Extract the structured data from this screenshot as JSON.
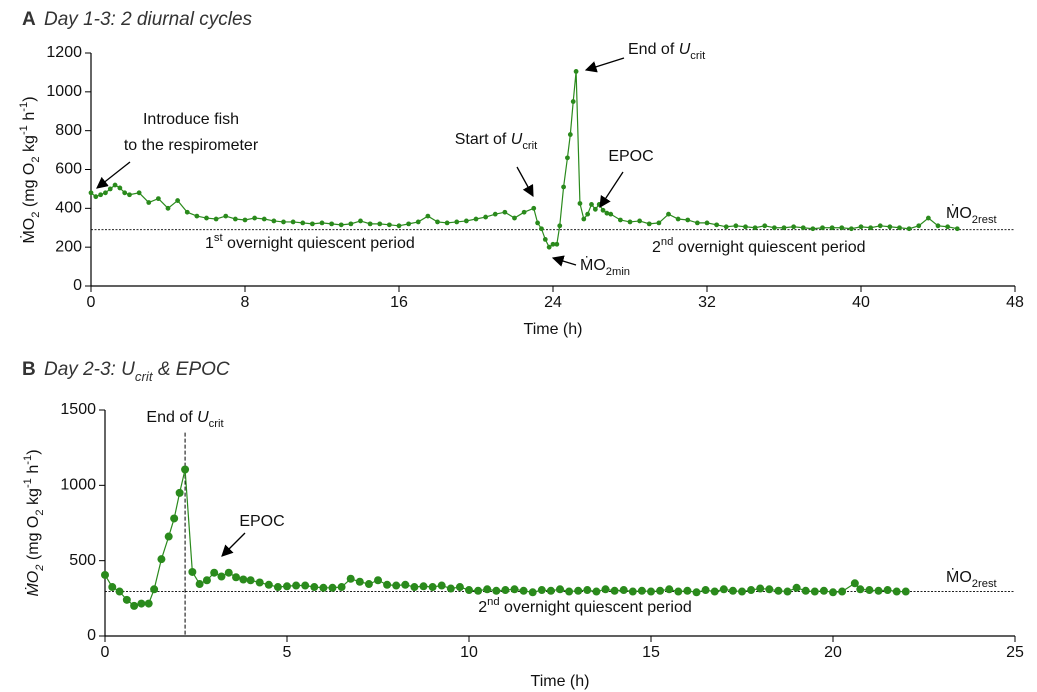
{
  "chart_data": [
    {
      "type": "line",
      "panel_label": "A",
      "title": [
        {
          "text": "Day 1-3: 2 diurnal cycles",
          "style": "italic"
        }
      ],
      "x_label": [
        {
          "text": "Time (h)"
        }
      ],
      "y_label": [
        {
          "text": "ṀO"
        },
        {
          "text": "2",
          "style": "sub"
        },
        {
          "text": " (mg O"
        },
        {
          "text": "2",
          "style": "sub"
        },
        {
          "text": " kg"
        },
        {
          "text": "-1",
          "style": "sup"
        },
        {
          "text": " h"
        },
        {
          "text": "-1",
          "style": "sup"
        },
        {
          "text": ")"
        }
      ],
      "xlim": [
        0,
        48
      ],
      "xticks": [
        0,
        8,
        16,
        24,
        32,
        40,
        48
      ],
      "ylim": [
        0,
        1200
      ],
      "yticks": [
        0,
        200,
        400,
        600,
        800,
        1000,
        1200
      ],
      "color": "#2a8a1c",
      "x": [
        0,
        0.25,
        0.5,
        0.75,
        1,
        1.25,
        1.5,
        1.75,
        2,
        2.5,
        3,
        3.5,
        4,
        4.5,
        5,
        5.5,
        6,
        6.5,
        7,
        7.5,
        8,
        8.5,
        9,
        9.5,
        10,
        10.5,
        11,
        11.5,
        12,
        12.5,
        13,
        13.5,
        14,
        14.5,
        15,
        15.5,
        16,
        16.5,
        17,
        17.5,
        18,
        18.5,
        19,
        19.5,
        20,
        20.5,
        21,
        21.5,
        22,
        22.5,
        23,
        23.2,
        23.4,
        23.6,
        23.8,
        24,
        24.2,
        24.35,
        24.55,
        24.75,
        24.9,
        25.05,
        25.2,
        25.4,
        25.6,
        25.8,
        26,
        26.2,
        26.4,
        26.6,
        26.8,
        27,
        27.5,
        28,
        28.5,
        29,
        29.5,
        30,
        30.5,
        31,
        31.5,
        32,
        32.5,
        33,
        33.5,
        34,
        34.5,
        35,
        35.5,
        36,
        36.5,
        37,
        37.5,
        38,
        38.5,
        39,
        39.5,
        40,
        40.5,
        41,
        41.5,
        42,
        42.5,
        43,
        43.5,
        44,
        44.5,
        45
      ],
      "values": [
        480,
        460,
        470,
        480,
        500,
        520,
        505,
        480,
        470,
        480,
        430,
        450,
        400,
        440,
        380,
        360,
        350,
        345,
        360,
        345,
        340,
        350,
        345,
        335,
        330,
        330,
        325,
        320,
        325,
        320,
        315,
        320,
        335,
        320,
        320,
        315,
        310,
        320,
        330,
        360,
        330,
        325,
        330,
        335,
        345,
        355,
        370,
        380,
        350,
        380,
        400,
        325,
        295,
        240,
        200,
        215,
        215,
        310,
        510,
        660,
        780,
        950,
        1105,
        425,
        345,
        370,
        420,
        395,
        420,
        390,
        375,
        370,
        340,
        330,
        335,
        320,
        325,
        370,
        345,
        340,
        325,
        325,
        315,
        305,
        310,
        305,
        300,
        310,
        300,
        300,
        305,
        300,
        295,
        300,
        300,
        300,
        295,
        305,
        300,
        310,
        305,
        300,
        295,
        310,
        350,
        310,
        305,
        295
      ],
      "reference_line": 290,
      "annotations": [
        [
          {
            "text": "Introduce fish"
          }
        ],
        [
          {
            "text": "to the respirometer"
          }
        ],
        [
          {
            "text": "Start of "
          },
          {
            "text": "U",
            "style": "italic"
          },
          {
            "text": "crit",
            "style": "sub"
          }
        ],
        [
          {
            "text": "End of "
          },
          {
            "text": "U",
            "style": "italic"
          },
          {
            "text": "crit",
            "style": "sub"
          }
        ],
        [
          {
            "text": "EPOC"
          }
        ],
        [
          {
            "text": "ṀO"
          },
          {
            "text": "2min",
            "style": "sub"
          }
        ],
        [
          {
            "text": "ṀO"
          },
          {
            "text": "2rest",
            "style": "sub"
          }
        ],
        [
          {
            "text": "1"
          },
          {
            "text": "st",
            "style": "sup"
          },
          {
            "text": " overnight quiescent period"
          }
        ],
        [
          {
            "text": "2"
          },
          {
            "text": "nd",
            "style": "sup"
          },
          {
            "text": " overnight quiescent period"
          }
        ]
      ]
    },
    {
      "type": "line",
      "panel_label": "B",
      "title": [
        {
          "text": "Day 2-3: U",
          "style": "italic"
        },
        {
          "text": "crit",
          "style": "italic-sub"
        },
        {
          "text": " & EPOC",
          "style": "italic"
        }
      ],
      "x_label": [
        {
          "text": "Time (h)"
        }
      ],
      "y_label": [
        {
          "text": "ṀO",
          "style": "italic"
        },
        {
          "text": "2",
          "style": "italic-sub"
        },
        {
          "text": " (mg O"
        },
        {
          "text": "2",
          "style": "sub"
        },
        {
          "text": " kg"
        },
        {
          "text": "-1",
          "style": "sup"
        },
        {
          "text": " h"
        },
        {
          "text": "-1",
          "style": "sup"
        },
        {
          "text": ")"
        }
      ],
      "xlim": [
        0,
        25
      ],
      "xticks": [
        0,
        5,
        10,
        15,
        20,
        25
      ],
      "ylim": [
        0,
        1500
      ],
      "yticks": [
        0,
        500,
        1000,
        1500
      ],
      "color": "#2a8a1c",
      "x": [
        0,
        0.2,
        0.4,
        0.6,
        0.8,
        1,
        1.2,
        1.35,
        1.55,
        1.75,
        1.9,
        2.05,
        2.2,
        2.4,
        2.6,
        2.8,
        3,
        3.2,
        3.4,
        3.6,
        3.8,
        4,
        4.25,
        4.5,
        4.75,
        5,
        5.25,
        5.5,
        5.75,
        6,
        6.25,
        6.5,
        6.75,
        7,
        7.25,
        7.5,
        7.75,
        8,
        8.25,
        8.5,
        8.75,
        9,
        9.25,
        9.5,
        9.75,
        10,
        10.25,
        10.5,
        10.75,
        11,
        11.25,
        11.5,
        11.75,
        12,
        12.25,
        12.5,
        12.75,
        13,
        13.25,
        13.5,
        13.75,
        14,
        14.25,
        14.5,
        14.75,
        15,
        15.25,
        15.5,
        15.75,
        16,
        16.25,
        16.5,
        16.75,
        17,
        17.25,
        17.5,
        17.75,
        18,
        18.25,
        18.5,
        18.75,
        19,
        19.25,
        19.5,
        19.75,
        20,
        20.25,
        20.6,
        20.75,
        21,
        21.25,
        21.5,
        21.75,
        22
      ],
      "values": [
        405,
        325,
        295,
        240,
        200,
        215,
        215,
        310,
        510,
        660,
        780,
        950,
        1105,
        425,
        345,
        370,
        420,
        395,
        420,
        390,
        375,
        370,
        355,
        340,
        325,
        330,
        335,
        335,
        325,
        320,
        320,
        325,
        380,
        360,
        345,
        370,
        340,
        335,
        340,
        325,
        330,
        325,
        335,
        315,
        325,
        305,
        300,
        310,
        300,
        305,
        310,
        300,
        290,
        305,
        300,
        310,
        295,
        300,
        305,
        295,
        310,
        300,
        305,
        295,
        300,
        295,
        300,
        310,
        295,
        300,
        290,
        305,
        295,
        310,
        300,
        295,
        305,
        315,
        310,
        300,
        295,
        320,
        300,
        295,
        300,
        290,
        295,
        350,
        310,
        305,
        300,
        305,
        295,
        295
      ],
      "reference_line": 295,
      "marker_line": {
        "x": 2.2,
        "top": 1350
      },
      "annotations": [
        [
          {
            "text": "End of "
          },
          {
            "text": "U",
            "style": "italic"
          },
          {
            "text": "crit",
            "style": "sub"
          }
        ],
        [
          {
            "text": "EPOC"
          }
        ],
        [
          {
            "text": "ṀO"
          },
          {
            "text": "2rest",
            "style": "sub"
          }
        ],
        [
          {
            "text": "2"
          },
          {
            "text": "nd",
            "style": "sup"
          },
          {
            "text": " overnight quiescent period"
          }
        ]
      ]
    }
  ]
}
